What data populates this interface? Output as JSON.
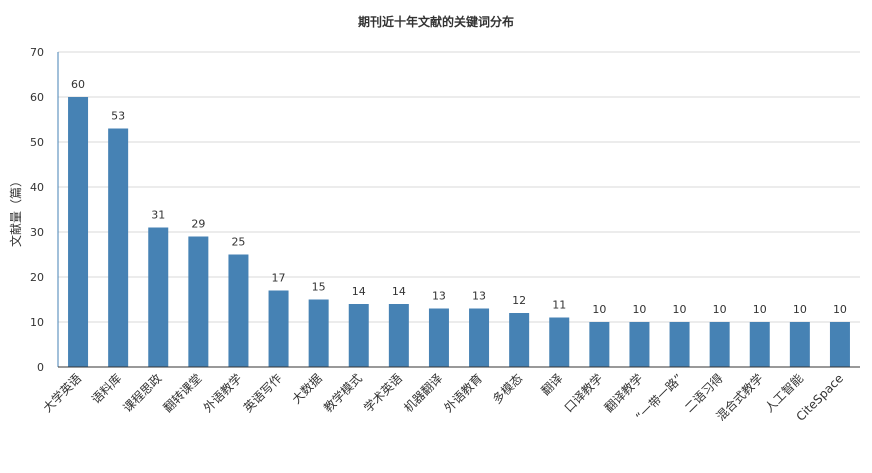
{
  "chart_data": {
    "type": "bar",
    "title": "期刊近十年文献的关键词分布",
    "xlabel": "",
    "ylabel": "文献量（篇）",
    "ylim": [
      0,
      70
    ],
    "yticks": [
      0,
      10,
      20,
      30,
      40,
      50,
      60,
      70
    ],
    "grid": true,
    "categories": [
      "大学英语",
      "语料库",
      "课程思政",
      "翻转课堂",
      "外语教学",
      "英语写作",
      "大数据",
      "教学模式",
      "学术英语",
      "机器翻译",
      "外语教育",
      "多模态",
      "翻译",
      "口译教学",
      "翻译教学",
      "“一带一路”",
      "二语习得",
      "混合式教学",
      "人工智能",
      "CiteSpace"
    ],
    "values": [
      60,
      53,
      31,
      29,
      25,
      17,
      15,
      14,
      14,
      13,
      13,
      12,
      11,
      10,
      10,
      10,
      10,
      10,
      10,
      10
    ],
    "colors": {
      "bar": "#4682b4",
      "axis": "#4682b4",
      "grid": "#d9d9d9"
    }
  }
}
